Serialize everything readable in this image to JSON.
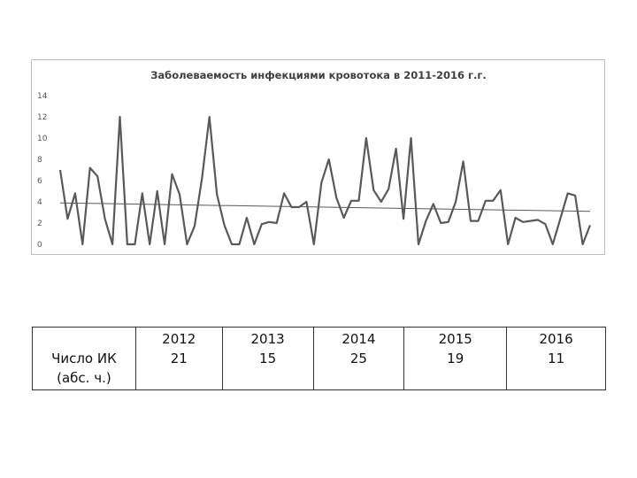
{
  "chart_data": {
    "type": "line",
    "title": "Заболеваемость инфекциями кровотока в 2011-2016 г.г.",
    "ylim": [
      0,
      14
    ],
    "yticks": [
      "0",
      "2",
      "4",
      "6",
      "8",
      "10",
      "12",
      "14"
    ],
    "grid": false,
    "series": [
      {
        "values": [
          7,
          2.4,
          4.8,
          0,
          7.2,
          6.4,
          2.4,
          0,
          12,
          0,
          0,
          4.8,
          0,
          5,
          0,
          6.6,
          4.7,
          0,
          1.7,
          6.2,
          12,
          4.7,
          1.8,
          0,
          0,
          2.5,
          0,
          1.9,
          2.1,
          2,
          4.8,
          3.5,
          3.5,
          4,
          0,
          5.8,
          8,
          4.4,
          2.5,
          4.1,
          4.1,
          10,
          5.1,
          4,
          5.2,
          9,
          2.4,
          10,
          0,
          2.2,
          3.8,
          2,
          2.1,
          4,
          7.8,
          2.2,
          2.2,
          4.1,
          4.1,
          5.1,
          0,
          2.5,
          2.1,
          2.2,
          2.3,
          1.9,
          0,
          2.4,
          4.8,
          4.6,
          0,
          1.8
        ],
        "color": "#595959"
      },
      {
        "type": "trend",
        "values": [
          3.9,
          3.1
        ],
        "color": "#595959"
      }
    ]
  },
  "table": {
    "row_label_line1": "Число ИК",
    "row_label_line2": "(абс. ч.)",
    "years": [
      "2012",
      "2013",
      "2014",
      "2015",
      "2016"
    ],
    "counts": [
      "21",
      "15",
      "25",
      "19",
      "11"
    ]
  }
}
